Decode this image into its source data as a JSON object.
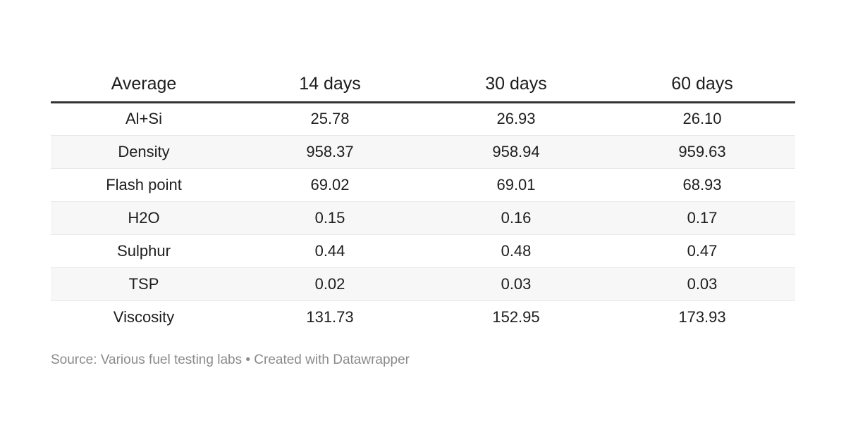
{
  "table": {
    "columns": [
      "Average",
      "14 days",
      "30 days",
      "60 days"
    ],
    "rows": [
      {
        "label": "Al+Si",
        "values": [
          "25.78",
          "26.93",
          "26.10"
        ]
      },
      {
        "label": "Density",
        "values": [
          "958.37",
          "958.94",
          "959.63"
        ]
      },
      {
        "label": "Flash point",
        "values": [
          "69.02",
          "69.01",
          "68.93"
        ]
      },
      {
        "label": "H2O",
        "values": [
          "0.15",
          "0.16",
          "0.17"
        ]
      },
      {
        "label": "Sulphur",
        "values": [
          "0.44",
          "0.48",
          "0.47"
        ]
      },
      {
        "label": "TSP",
        "values": [
          "0.02",
          "0.03",
          "0.03"
        ]
      },
      {
        "label": "Viscosity",
        "values": [
          "131.73",
          "152.95",
          "173.93"
        ]
      }
    ]
  },
  "footer": {
    "source_text": "Source: Various fuel testing labs • Created with Datawrapper"
  },
  "colors": {
    "text": "#1d1d1d",
    "header_rule": "#333333",
    "row_stripe": "#f7f7f7",
    "row_border": "#e8e8e8",
    "footer_text": "#8a8a8a",
    "background": "#ffffff"
  },
  "chart_data": {
    "type": "table",
    "title": "",
    "columns": [
      "Average",
      "14 days",
      "30 days",
      "60 days"
    ],
    "rows": [
      [
        "Al+Si",
        25.78,
        26.93,
        26.1
      ],
      [
        "Density",
        958.37,
        958.94,
        959.63
      ],
      [
        "Flash point",
        69.02,
        69.01,
        68.93
      ],
      [
        "H2O",
        0.15,
        0.16,
        0.17
      ],
      [
        "Sulphur",
        0.44,
        0.48,
        0.47
      ],
      [
        "TSP",
        0.02,
        0.03,
        0.03
      ],
      [
        "Viscosity",
        131.73,
        152.95,
        173.93
      ]
    ],
    "layout": {
      "striped_rows": true,
      "header_rule": true,
      "alignment": "center"
    },
    "source": "Various fuel testing labs",
    "tool": "Datawrapper"
  }
}
